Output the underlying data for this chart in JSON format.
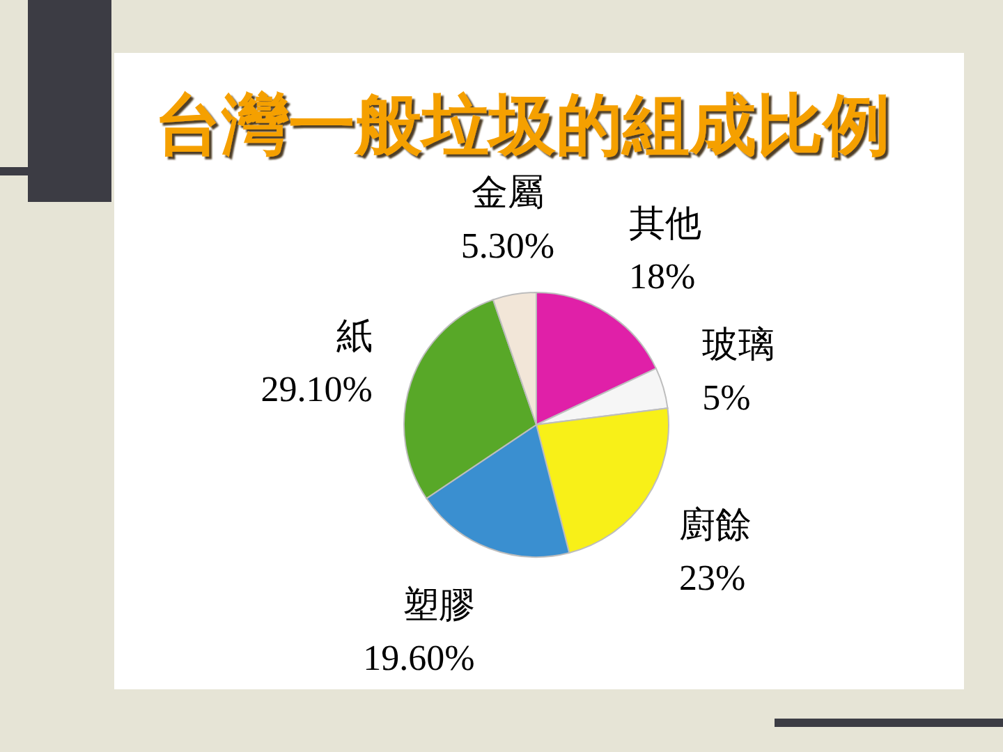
{
  "chart_data": {
    "type": "pie",
    "title": "台灣一般垃圾的組成比例",
    "categories": [
      "其他",
      "玻璃",
      "廚餘",
      "塑膠",
      "紙",
      "金屬"
    ],
    "values": [
      18,
      5,
      23,
      19.6,
      29.1,
      5.3
    ],
    "value_labels": [
      "18%",
      "5%",
      "23%",
      "19.60%",
      "29.10%",
      "5.30%"
    ],
    "colors": [
      "#e020a8",
      "#f6f6f6",
      "#f8f018",
      "#3a8fd0",
      "#58a828",
      "#f2e6d8"
    ]
  }
}
